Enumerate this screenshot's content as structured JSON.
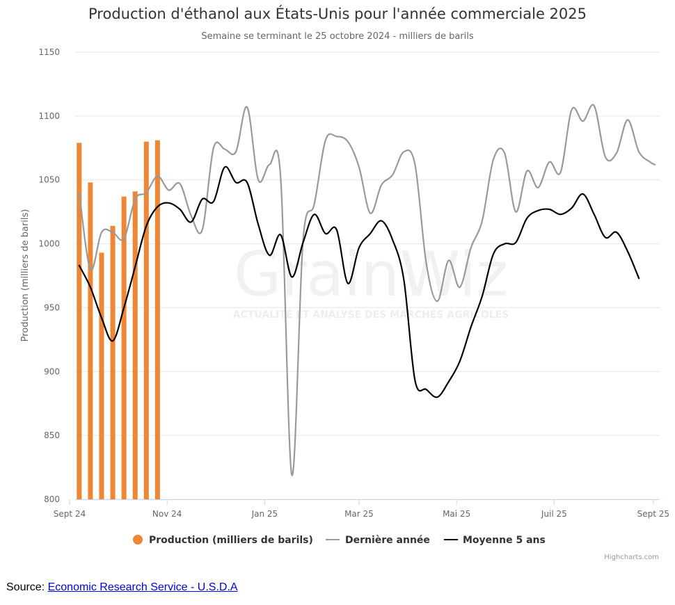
{
  "source": {
    "label": "Source:",
    "link_text": "Economic Research Service - U.S.D.A"
  },
  "credits": "Highcharts.com",
  "watermark": {
    "brand": "GrainWiz",
    "tagline": "ACTUALITÉ ET ANALYSE DES MARCHÉS AGRICOLES"
  },
  "chart_data": {
    "type": "bar",
    "title": "Production d'éthanol aux États-Unis pour l'année commerciale 2025",
    "subtitle": "Semaine se terminant le 25 octobre 2024 - milliers de barils",
    "ylabel": "Production (milliers de barils)",
    "xlabel": "",
    "ylim": [
      800,
      1150
    ],
    "yticks": [
      800,
      850,
      900,
      950,
      1000,
      1050,
      1100,
      1150
    ],
    "x_range": [
      "2024-09-01",
      "2025-09-05"
    ],
    "xticks": [
      {
        "date": "2024-09-01",
        "label": "Sept 24"
      },
      {
        "date": "2024-11-01",
        "label": "Nov 24"
      },
      {
        "date": "2025-01-01",
        "label": "Jan 25"
      },
      {
        "date": "2025-03-01",
        "label": "Mar 25"
      },
      {
        "date": "2025-05-01",
        "label": "Mai 25"
      },
      {
        "date": "2025-07-01",
        "label": "Juil 25"
      },
      {
        "date": "2025-09-01",
        "label": "Sept 25"
      }
    ],
    "grid": true,
    "legend_position": "bottom-center",
    "series": [
      {
        "name": "Production (milliers de barils)",
        "type": "column",
        "color": "#ef8636",
        "points": [
          {
            "x": "2024-09-07",
            "y": 1079
          },
          {
            "x": "2024-09-14",
            "y": 1048
          },
          {
            "x": "2024-09-21",
            "y": 993
          },
          {
            "x": "2024-09-28",
            "y": 1014
          },
          {
            "x": "2024-10-05",
            "y": 1037
          },
          {
            "x": "2024-10-12",
            "y": 1041
          },
          {
            "x": "2024-10-19",
            "y": 1080
          },
          {
            "x": "2024-10-26",
            "y": 1081
          }
        ]
      },
      {
        "name": "Dernière année",
        "type": "spline",
        "color": "#999999",
        "points": [
          {
            "x": "2024-09-07",
            "y": 1040
          },
          {
            "x": "2024-09-14",
            "y": 980
          },
          {
            "x": "2024-09-21",
            "y": 1009
          },
          {
            "x": "2024-09-28",
            "y": 1009
          },
          {
            "x": "2024-10-05",
            "y": 1004
          },
          {
            "x": "2024-10-12",
            "y": 1035
          },
          {
            "x": "2024-10-19",
            "y": 1040
          },
          {
            "x": "2024-10-26",
            "y": 1053
          },
          {
            "x": "2024-11-02",
            "y": 1042
          },
          {
            "x": "2024-11-09",
            "y": 1047
          },
          {
            "x": "2024-11-16",
            "y": 1022
          },
          {
            "x": "2024-11-23",
            "y": 1011
          },
          {
            "x": "2024-11-30",
            "y": 1075
          },
          {
            "x": "2024-12-07",
            "y": 1074
          },
          {
            "x": "2024-12-14",
            "y": 1072
          },
          {
            "x": "2024-12-21",
            "y": 1107
          },
          {
            "x": "2024-12-28",
            "y": 1050
          },
          {
            "x": "2025-01-04",
            "y": 1062
          },
          {
            "x": "2025-01-11",
            "y": 1052
          },
          {
            "x": "2025-01-18",
            "y": 819
          },
          {
            "x": "2025-01-25",
            "y": 1003
          },
          {
            "x": "2025-02-01",
            "y": 1031
          },
          {
            "x": "2025-02-08",
            "y": 1081
          },
          {
            "x": "2025-02-15",
            "y": 1084
          },
          {
            "x": "2025-02-22",
            "y": 1080
          },
          {
            "x": "2025-03-01",
            "y": 1060
          },
          {
            "x": "2025-03-08",
            "y": 1024
          },
          {
            "x": "2025-03-15",
            "y": 1046
          },
          {
            "x": "2025-03-22",
            "y": 1054
          },
          {
            "x": "2025-03-29",
            "y": 1072
          },
          {
            "x": "2025-04-05",
            "y": 1062
          },
          {
            "x": "2025-04-12",
            "y": 985
          },
          {
            "x": "2025-04-19",
            "y": 955
          },
          {
            "x": "2025-04-26",
            "y": 987
          },
          {
            "x": "2025-05-03",
            "y": 966
          },
          {
            "x": "2025-05-10",
            "y": 997
          },
          {
            "x": "2025-05-17",
            "y": 1018
          },
          {
            "x": "2025-05-24",
            "y": 1066
          },
          {
            "x": "2025-05-31",
            "y": 1071
          },
          {
            "x": "2025-06-07",
            "y": 1025
          },
          {
            "x": "2025-06-14",
            "y": 1057
          },
          {
            "x": "2025-06-21",
            "y": 1044
          },
          {
            "x": "2025-06-28",
            "y": 1064
          },
          {
            "x": "2025-07-05",
            "y": 1056
          },
          {
            "x": "2025-07-12",
            "y": 1105
          },
          {
            "x": "2025-07-19",
            "y": 1096
          },
          {
            "x": "2025-07-26",
            "y": 1108
          },
          {
            "x": "2025-08-02",
            "y": 1068
          },
          {
            "x": "2025-08-09",
            "y": 1071
          },
          {
            "x": "2025-08-16",
            "y": 1097
          },
          {
            "x": "2025-08-23",
            "y": 1072
          },
          {
            "x": "2025-08-30",
            "y": 1064
          },
          {
            "x": "2025-09-02",
            "y": 1062
          }
        ]
      },
      {
        "name": "Moyenne 5 ans",
        "type": "spline",
        "color": "#000000",
        "points": [
          {
            "x": "2024-09-07",
            "y": 983
          },
          {
            "x": "2024-09-14",
            "y": 966
          },
          {
            "x": "2024-09-21",
            "y": 942
          },
          {
            "x": "2024-09-28",
            "y": 924
          },
          {
            "x": "2024-10-05",
            "y": 950
          },
          {
            "x": "2024-10-12",
            "y": 982
          },
          {
            "x": "2024-10-19",
            "y": 1014
          },
          {
            "x": "2024-10-26",
            "y": 1029
          },
          {
            "x": "2024-11-02",
            "y": 1032
          },
          {
            "x": "2024-11-09",
            "y": 1027
          },
          {
            "x": "2024-11-16",
            "y": 1017
          },
          {
            "x": "2024-11-23",
            "y": 1035
          },
          {
            "x": "2024-11-30",
            "y": 1033
          },
          {
            "x": "2024-12-07",
            "y": 1060
          },
          {
            "x": "2024-12-14",
            "y": 1048
          },
          {
            "x": "2024-12-21",
            "y": 1048
          },
          {
            "x": "2024-12-28",
            "y": 1015
          },
          {
            "x": "2025-01-04",
            "y": 991
          },
          {
            "x": "2025-01-11",
            "y": 1007
          },
          {
            "x": "2025-01-18",
            "y": 974
          },
          {
            "x": "2025-01-25",
            "y": 1001
          },
          {
            "x": "2025-02-01",
            "y": 1023
          },
          {
            "x": "2025-02-08",
            "y": 1008
          },
          {
            "x": "2025-02-15",
            "y": 1011
          },
          {
            "x": "2025-02-22",
            "y": 969
          },
          {
            "x": "2025-03-01",
            "y": 997
          },
          {
            "x": "2025-03-08",
            "y": 1008
          },
          {
            "x": "2025-03-15",
            "y": 1018
          },
          {
            "x": "2025-03-22",
            "y": 1003
          },
          {
            "x": "2025-03-29",
            "y": 972
          },
          {
            "x": "2025-04-05",
            "y": 893
          },
          {
            "x": "2025-04-12",
            "y": 886
          },
          {
            "x": "2025-04-19",
            "y": 880
          },
          {
            "x": "2025-04-26",
            "y": 892
          },
          {
            "x": "2025-05-03",
            "y": 908
          },
          {
            "x": "2025-05-10",
            "y": 935
          },
          {
            "x": "2025-05-17",
            "y": 959
          },
          {
            "x": "2025-05-24",
            "y": 992
          },
          {
            "x": "2025-05-31",
            "y": 1000
          },
          {
            "x": "2025-06-07",
            "y": 1001
          },
          {
            "x": "2025-06-14",
            "y": 1020
          },
          {
            "x": "2025-06-21",
            "y": 1026
          },
          {
            "x": "2025-06-28",
            "y": 1027
          },
          {
            "x": "2025-07-05",
            "y": 1023
          },
          {
            "x": "2025-07-12",
            "y": 1028
          },
          {
            "x": "2025-07-19",
            "y": 1039
          },
          {
            "x": "2025-07-26",
            "y": 1023
          },
          {
            "x": "2025-08-02",
            "y": 1005
          },
          {
            "x": "2025-08-09",
            "y": 1009
          },
          {
            "x": "2025-08-16",
            "y": 994
          },
          {
            "x": "2025-08-23",
            "y": 973
          }
        ]
      }
    ]
  }
}
